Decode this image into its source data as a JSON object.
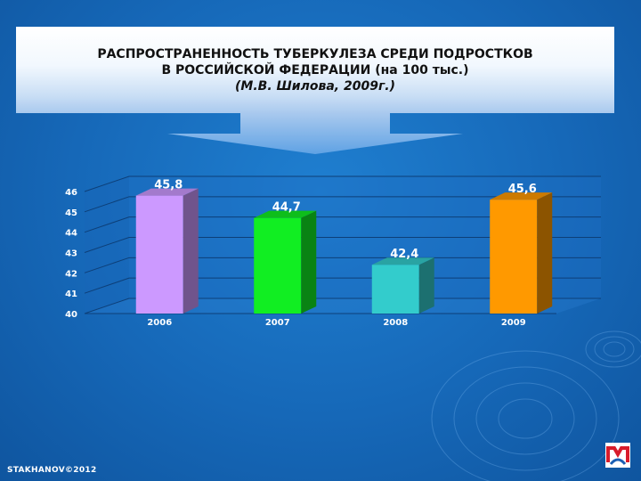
{
  "slide": {
    "title_line1": "РАСПРОСТРАНЕННОСТЬ ТУБЕРКУЛЕЗА СРЕДИ ПОДРОСТКОВ",
    "title_line2": "В РОССИЙСКОЙ ФЕДЕРАЦИИ (на 100 тыс.)",
    "title_line3": "(М.В. Шилова, 2009г.)",
    "footer": "STAKHANOV©2012",
    "logo_icon": "brand-logo-icon"
  },
  "chart_data": {
    "type": "bar",
    "title": "",
    "xlabel": "",
    "ylabel": "",
    "categories": [
      "2006",
      "2007",
      "2008",
      "2009"
    ],
    "values": [
      45.8,
      44.7,
      42.4,
      45.6
    ],
    "value_labels": [
      "45,8",
      "44,7",
      "42,4",
      "45,6"
    ],
    "colors": [
      "#cc99ff",
      "#11ee22",
      "#33cccc",
      "#ff9900"
    ],
    "ylim": [
      40,
      46
    ],
    "yticks": [
      40,
      41,
      42,
      43,
      44,
      45,
      46
    ],
    "grid": true,
    "style": "3d"
  }
}
